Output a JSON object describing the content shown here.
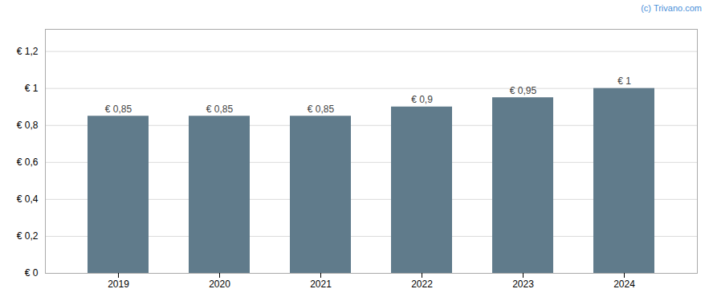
{
  "chart_data": {
    "type": "bar",
    "categories": [
      "2019",
      "2020",
      "2021",
      "2022",
      "2023",
      "2024"
    ],
    "values": [
      0.85,
      0.85,
      0.85,
      0.9,
      0.95,
      1.0
    ],
    "value_labels": [
      "€ 0,85",
      "€ 0,85",
      "€ 0,85",
      "€ 0,9",
      "€ 0,95",
      "€ 1"
    ],
    "data_labels": true,
    "color": "#607b8b",
    "ylim": [
      0,
      1.32
    ],
    "yticks": [
      {
        "value": 0,
        "label": "€ 0"
      },
      {
        "value": 0.2,
        "label": "€ 0,2"
      },
      {
        "value": 0.4,
        "label": "€ 0,4"
      },
      {
        "value": 0.6,
        "label": "€ 0,6"
      },
      {
        "value": 0.8,
        "label": "€ 0,8"
      },
      {
        "value": 1.0,
        "label": "€ 1"
      },
      {
        "value": 1.2,
        "label": "€ 1,2"
      }
    ],
    "grid": true,
    "annotations": [
      "(c) Trivano.com"
    ]
  }
}
